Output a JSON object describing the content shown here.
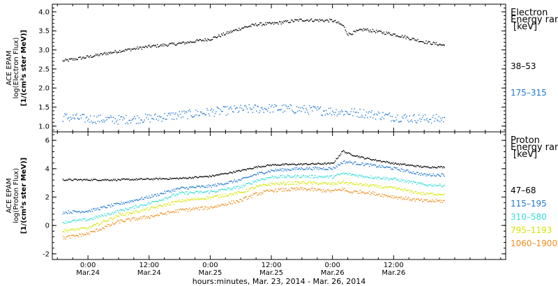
{
  "chart_data": [
    {
      "type": "scatter",
      "panel": "electron",
      "ylabel_lines": [
        "ACE EPAM",
        "log(Electron Flux)",
        "[1/(cm²s ster MeV)]"
      ],
      "ylim": [
        0.85,
        4.2
      ],
      "yticks": [
        1.0,
        1.5,
        2.0,
        2.5,
        3.0,
        3.5,
        4.0
      ],
      "ytick_labels": [
        "1.0",
        "1.5",
        "2.0",
        "2.5",
        "3.0",
        "3.5",
        "4.0"
      ],
      "legend_title": [
        "Electron",
        "Energy ran",
        "[keV]"
      ],
      "series": [
        {
          "name": "38–53",
          "color": "#000000",
          "x": [
            -5,
            0,
            6,
            12,
            18,
            24,
            30,
            33,
            36,
            42,
            48,
            50,
            51,
            54,
            60,
            66,
            70
          ],
          "y": [
            2.72,
            2.83,
            2.98,
            3.1,
            3.18,
            3.3,
            3.58,
            3.68,
            3.7,
            3.8,
            3.78,
            3.65,
            3.42,
            3.55,
            3.42,
            3.22,
            3.13
          ],
          "spread": 0.04
        },
        {
          "name": "175–315",
          "color": "#1e78d2",
          "x": [
            -5,
            0,
            6,
            12,
            18,
            24,
            30,
            36,
            42,
            48,
            54,
            60,
            66,
            70
          ],
          "y": [
            1.25,
            1.2,
            1.18,
            1.22,
            1.3,
            1.38,
            1.45,
            1.48,
            1.45,
            1.4,
            1.35,
            1.25,
            1.2,
            1.2
          ],
          "spread": 0.12
        }
      ]
    },
    {
      "type": "scatter",
      "panel": "proton",
      "ylabel_lines": [
        "ACE EPAM",
        "log(Proton Flux)",
        "[1/(cm²s ster MeV)]"
      ],
      "ylim": [
        -2.4,
        6.6
      ],
      "yticks": [
        -2,
        0,
        2,
        4,
        6
      ],
      "ytick_labels": [
        "-2",
        "0",
        "2",
        "4",
        "6"
      ],
      "legend_title": [
        "Proton",
        "Energy ran",
        "[keV]"
      ],
      "series": [
        {
          "name": "47–68",
          "color": "#000000",
          "x": [
            -5,
            0,
            6,
            12,
            18,
            24,
            30,
            33,
            36,
            42,
            48,
            50,
            51,
            54,
            60,
            66,
            70
          ],
          "y": [
            3.25,
            3.25,
            3.25,
            3.3,
            3.35,
            3.5,
            3.9,
            4.15,
            4.3,
            4.35,
            4.4,
            5.3,
            5.1,
            4.8,
            4.4,
            4.15,
            4.15
          ],
          "spread": 0.06
        },
        {
          "name": "115–195",
          "color": "#1e78d2",
          "x": [
            -5,
            0,
            6,
            12,
            18,
            24,
            30,
            33,
            36,
            42,
            48,
            50,
            51,
            54,
            60,
            66,
            70
          ],
          "y": [
            0.95,
            1.05,
            1.55,
            2.05,
            2.65,
            2.8,
            3.25,
            3.65,
            3.9,
            4.05,
            4.05,
            4.5,
            4.5,
            4.35,
            4.05,
            3.6,
            3.6
          ],
          "spread": 0.1
        },
        {
          "name": "310–580",
          "color": "#33ddd8",
          "x": [
            -5,
            0,
            6,
            12,
            18,
            24,
            30,
            33,
            36,
            42,
            48,
            50,
            51,
            54,
            60,
            66,
            70
          ],
          "y": [
            0.25,
            0.45,
            1.05,
            1.6,
            2.3,
            2.4,
            2.75,
            3.2,
            3.45,
            3.5,
            3.45,
            3.7,
            3.65,
            3.5,
            3.3,
            2.9,
            2.85
          ],
          "spread": 0.1
        },
        {
          "name": "795–1193",
          "color": "#d4e600",
          "x": [
            -5,
            0,
            6,
            12,
            18,
            24,
            30,
            33,
            36,
            42,
            48,
            50,
            51,
            54,
            60,
            66,
            70
          ],
          "y": [
            -0.35,
            -0.15,
            0.75,
            1.2,
            1.75,
            2.0,
            2.35,
            2.75,
            2.95,
            3.05,
            2.95,
            3.1,
            3.0,
            2.9,
            2.65,
            2.25,
            2.25
          ],
          "spread": 0.1
        },
        {
          "name": "1060–1900",
          "color": "#f08c1a",
          "x": [
            -5,
            0,
            6,
            12,
            18,
            24,
            30,
            33,
            36,
            42,
            48,
            50,
            51,
            54,
            60,
            66,
            70
          ],
          "y": [
            -0.85,
            -0.55,
            0.3,
            0.65,
            1.1,
            1.3,
            1.8,
            2.25,
            2.5,
            2.6,
            2.45,
            2.6,
            2.4,
            2.4,
            2.05,
            1.75,
            1.75
          ],
          "spread": 0.12
        }
      ]
    }
  ],
  "x_axis": {
    "xlim": [
      -7,
      82
    ],
    "ticks": [
      0,
      12,
      24,
      36,
      48,
      60
    ],
    "tick_time_labels": [
      "0:00",
      "12:00",
      "0:00",
      "12:00",
      "0:00",
      "12:00"
    ],
    "tick_date_labels": [
      "Mar.24",
      "Mar.24",
      "Mar.25",
      "Mar.25",
      "Mar.26",
      "Mar.26"
    ],
    "minor_step": 3,
    "label": "hours:minutes, Mar. 23, 2014 - Mar. 26, 2014"
  }
}
